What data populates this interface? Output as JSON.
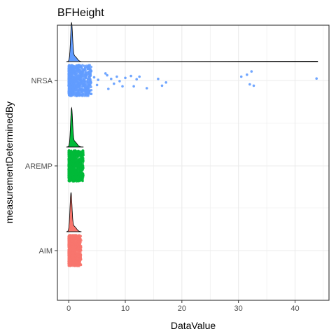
{
  "chart_data": {
    "type": "raincloud",
    "title": "BFHeight",
    "xlabel": "DataValue",
    "ylabel": "measurementDeterminedBy",
    "xlim": [
      -2,
      46
    ],
    "x_ticks": [
      0,
      10,
      20,
      30,
      40
    ],
    "categories": [
      "AIM",
      "AREMP",
      "NRSA"
    ],
    "grid": true,
    "legend": "none",
    "series": [
      {
        "category": "AIM",
        "color": "#F8766D",
        "main_range": [
          0,
          2.2
        ],
        "density_peak_x": 0.4,
        "outliers": []
      },
      {
        "category": "AREMP",
        "color": "#00BA38",
        "main_range": [
          0,
          2.6
        ],
        "density_peak_x": 0.5,
        "outliers": []
      },
      {
        "category": "NRSA",
        "color": "#619CFF",
        "main_range": [
          0,
          4
        ],
        "density_peak_x": 0.5,
        "density_tail_to": 44,
        "outliers": [
          {
            "x": 4.5,
            "y": 0.1
          },
          {
            "x": 5.0,
            "y": -0.14
          },
          {
            "x": 5.2,
            "y": 0.02
          },
          {
            "x": 6.5,
            "y": 0.22
          },
          {
            "x": 6.8,
            "y": 0.16
          },
          {
            "x": 7.0,
            "y": -0.26
          },
          {
            "x": 7.5,
            "y": 0.05
          },
          {
            "x": 8.0,
            "y": -0.1
          },
          {
            "x": 8.5,
            "y": 0.12
          },
          {
            "x": 9.0,
            "y": -0.02
          },
          {
            "x": 9.5,
            "y": -0.18
          },
          {
            "x": 10.0,
            "y": 0.08
          },
          {
            "x": 11.0,
            "y": 0.14
          },
          {
            "x": 11.5,
            "y": -0.18
          },
          {
            "x": 12.0,
            "y": 0.04
          },
          {
            "x": 12.5,
            "y": 0.12
          },
          {
            "x": 13.8,
            "y": -0.24
          },
          {
            "x": 15.8,
            "y": 0.05
          },
          {
            "x": 16.5,
            "y": -0.16
          },
          {
            "x": 17.2,
            "y": -0.06
          },
          {
            "x": 30.5,
            "y": 0.12
          },
          {
            "x": 31.5,
            "y": 0.18
          },
          {
            "x": 32.3,
            "y": 0.28
          },
          {
            "x": 32.0,
            "y": -0.12
          },
          {
            "x": 32.7,
            "y": -0.16
          },
          {
            "x": 43.8,
            "y": 0.06
          }
        ]
      }
    ]
  }
}
